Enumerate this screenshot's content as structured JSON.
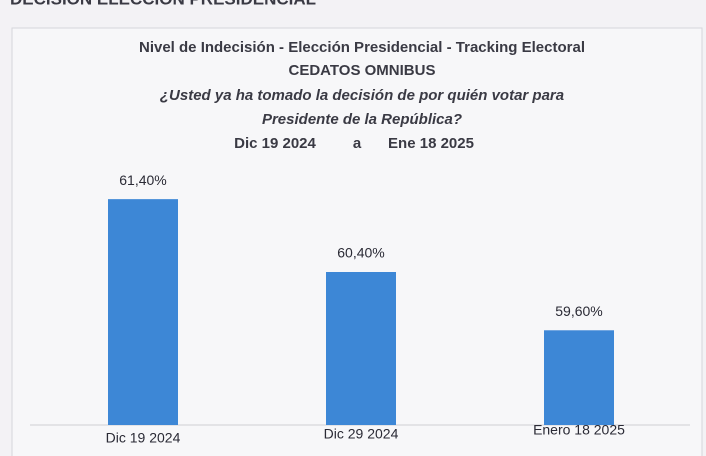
{
  "header": "DECISIÓN ELECCIÓN PRESIDENCIAL",
  "chart_data": {
    "type": "bar",
    "title": "Nivel de Indecisión - Elección Presidencial - Tracking Electoral",
    "subtitle": [
      "CEDATOS OMNIBUS",
      "¿Usted ya ha tomado la decisión de por quién votar para",
      "Presidente de la República?"
    ],
    "date_range": [
      "Dic 19 2024",
      "a",
      "Ene 18 2025"
    ],
    "categories": [
      "Dic 19 2024",
      "Dic 29 2024",
      "Enero 18 2025"
    ],
    "values": [
      61.4,
      60.4,
      59.6
    ],
    "value_labels": [
      "61,40%",
      "60,40%",
      "59,60%"
    ],
    "color": "#3d87d6",
    "ylim": [
      58.3,
      61.8
    ]
  }
}
